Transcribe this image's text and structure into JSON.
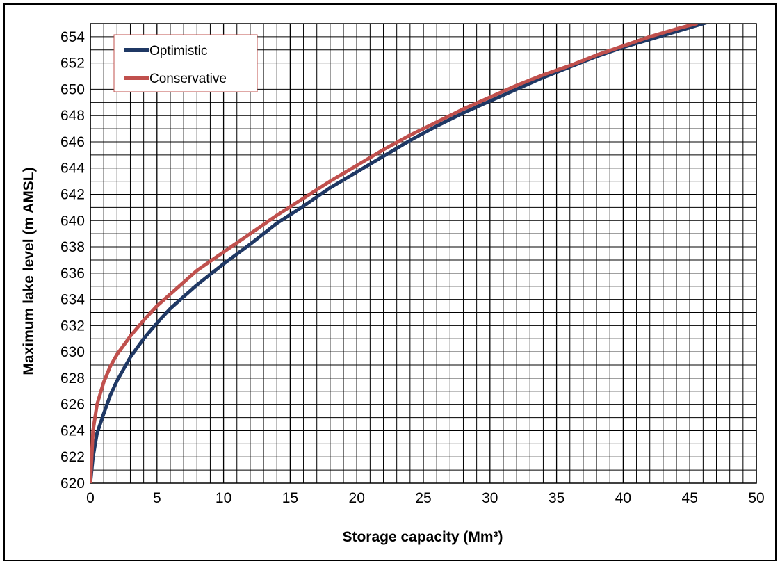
{
  "chart_data": {
    "type": "line",
    "xlabel": "Storage capacity (Mm³)",
    "ylabel": "Maximum lake level (m AMSL)",
    "xlim": [
      0,
      50
    ],
    "ylim": [
      620,
      655
    ],
    "xticks": [
      "0",
      "5",
      "10",
      "15",
      "20",
      "25",
      "30",
      "35",
      "40",
      "45",
      "50"
    ],
    "yticks": [
      "620",
      "622",
      "624",
      "626",
      "628",
      "630",
      "632",
      "634",
      "636",
      "638",
      "640",
      "642",
      "644",
      "646",
      "648",
      "650",
      "652",
      "654"
    ],
    "grid": true,
    "legend_position": "top-left",
    "series": [
      {
        "name": "Optimistic",
        "color": "#1f3864",
        "x": [
          0,
          0.2,
          0.5,
          1,
          1.5,
          2,
          3,
          4,
          5,
          6,
          7,
          8,
          9,
          10,
          12,
          14,
          16,
          18,
          20,
          22,
          24,
          26,
          28,
          30,
          32,
          34,
          36,
          38,
          40,
          42,
          44,
          46,
          47
        ],
        "y": [
          620,
          622,
          623.8,
          625.3,
          626.7,
          627.8,
          629.6,
          631,
          632.2,
          633.3,
          634.2,
          635.1,
          635.9,
          636.7,
          638.2,
          639.8,
          641.1,
          642.5,
          643.7,
          644.9,
          646.1,
          647.2,
          648.2,
          649.1,
          650,
          650.9,
          651.7,
          652.5,
          653.2,
          653.8,
          654.4,
          655,
          655.3
        ]
      },
      {
        "name": "Conservative",
        "color": "#c0504d",
        "x": [
          0,
          0.2,
          0.5,
          1,
          1.5,
          2,
          3,
          4,
          5,
          6,
          7,
          8,
          9,
          10,
          12,
          14,
          16,
          18,
          20,
          22,
          24,
          26,
          28,
          30,
          32,
          34,
          36,
          38,
          40,
          42,
          44,
          45.5
        ],
        "y": [
          620,
          624,
          626,
          627.7,
          628.9,
          629.8,
          631.2,
          632.4,
          633.5,
          634.4,
          635.3,
          636.2,
          636.9,
          637.6,
          639,
          640.4,
          641.7,
          643,
          644.2,
          645.4,
          646.5,
          647.5,
          648.5,
          649.4,
          650.3,
          651.1,
          651.8,
          652.6,
          653.3,
          654,
          654.6,
          655
        ]
      }
    ]
  }
}
